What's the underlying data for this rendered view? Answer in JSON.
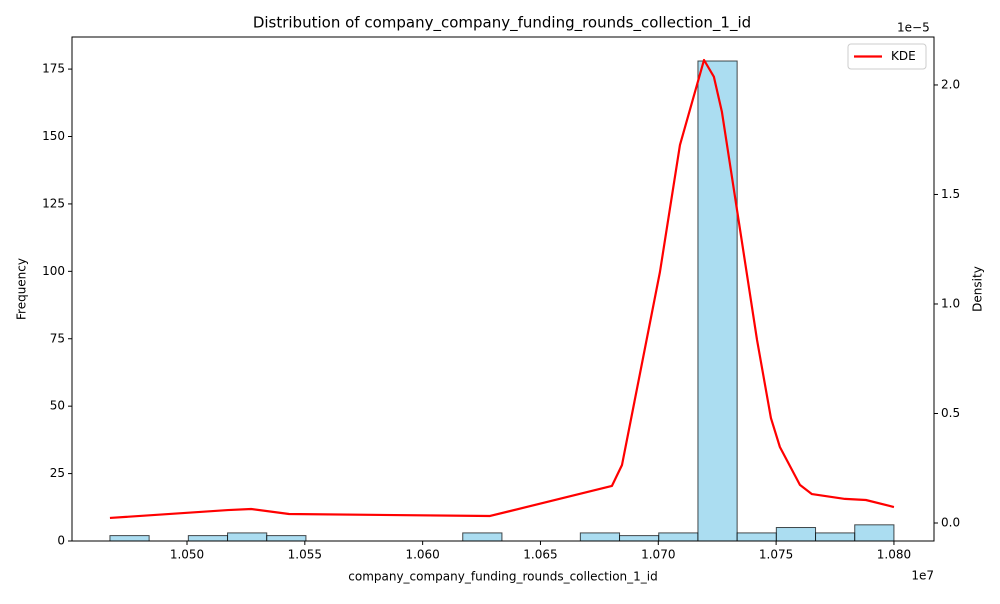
{
  "chart_data": {
    "type": "histogram",
    "title": "Distribution of company_company_funding_rounds_collection_1_id",
    "x_label": "company_company_funding_rounds_collection_1_id",
    "y_label": "Frequency",
    "y2_label": "Density",
    "x_offset_label": "1e7",
    "y2_offset_label": "1e−5",
    "color": "#87ceeb",
    "bins": [
      10467300,
      10483935,
      10500570,
      10517205,
      10533840,
      10550475,
      10567110,
      10583745,
      10600380,
      10617015,
      10633650,
      10650285,
      10666920,
      10683555,
      10700190,
      10716825,
      10733460,
      10750095,
      10766730,
      10783365,
      10800000
    ],
    "values": [
      2,
      0,
      2,
      3,
      2,
      0,
      0,
      0,
      0,
      3,
      0,
      0,
      3,
      2,
      3,
      178,
      3,
      5,
      3,
      6
    ],
    "series": [
      {
        "name": "KDE",
        "color": "#ff0000",
        "axis": "y2",
        "x": [
          10467300,
          10517400,
          10527200,
          10543300,
          10628600,
          10680300,
          10684600,
          10700700,
          10709200,
          10719400,
          10723600,
          10727000,
          10741900,
          10747800,
          10751600,
          10760100,
          10765200,
          10779200,
          10788100,
          10800000
        ],
        "values": [
          2.3e-07,
          5.9e-07,
          6.4e-07,
          4.1e-07,
          3.2e-07,
          1.69e-06,
          2.65e-06,
          1.146e-05,
          1.726e-05,
          2.114e-05,
          2.037e-05,
          1.877e-05,
          8.36e-06,
          4.79e-06,
          3.47e-06,
          1.74e-06,
          1.32e-06,
          1.1e-06,
          1.05e-06,
          7.3e-07
        ]
      }
    ],
    "xlim": [
      10451200,
      10817000
    ],
    "xticks": [
      {
        "value": 10500000,
        "label": "1.050"
      },
      {
        "value": 10550000,
        "label": "1.055"
      },
      {
        "value": 10600000,
        "label": "1.060"
      },
      {
        "value": 10650000,
        "label": "1.065"
      },
      {
        "value": 10700000,
        "label": "1.070"
      },
      {
        "value": 10750000,
        "label": "1.075"
      },
      {
        "value": 10800000,
        "label": "1.080"
      }
    ],
    "ylim": [
      0,
      186.9
    ],
    "yticks": [
      0,
      25,
      50,
      75,
      100,
      125,
      150,
      175
    ],
    "y2lim": [
      -8.22e-07,
      2.219e-05
    ],
    "y2ticks": [
      {
        "value": 0,
        "label": "0.0"
      },
      {
        "value": 5e-06,
        "label": "0.5"
      },
      {
        "value": 1e-05,
        "label": "1.0"
      },
      {
        "value": 1.5e-05,
        "label": "1.5"
      },
      {
        "value": 2e-05,
        "label": "2.0"
      }
    ],
    "legend": "upper right"
  }
}
